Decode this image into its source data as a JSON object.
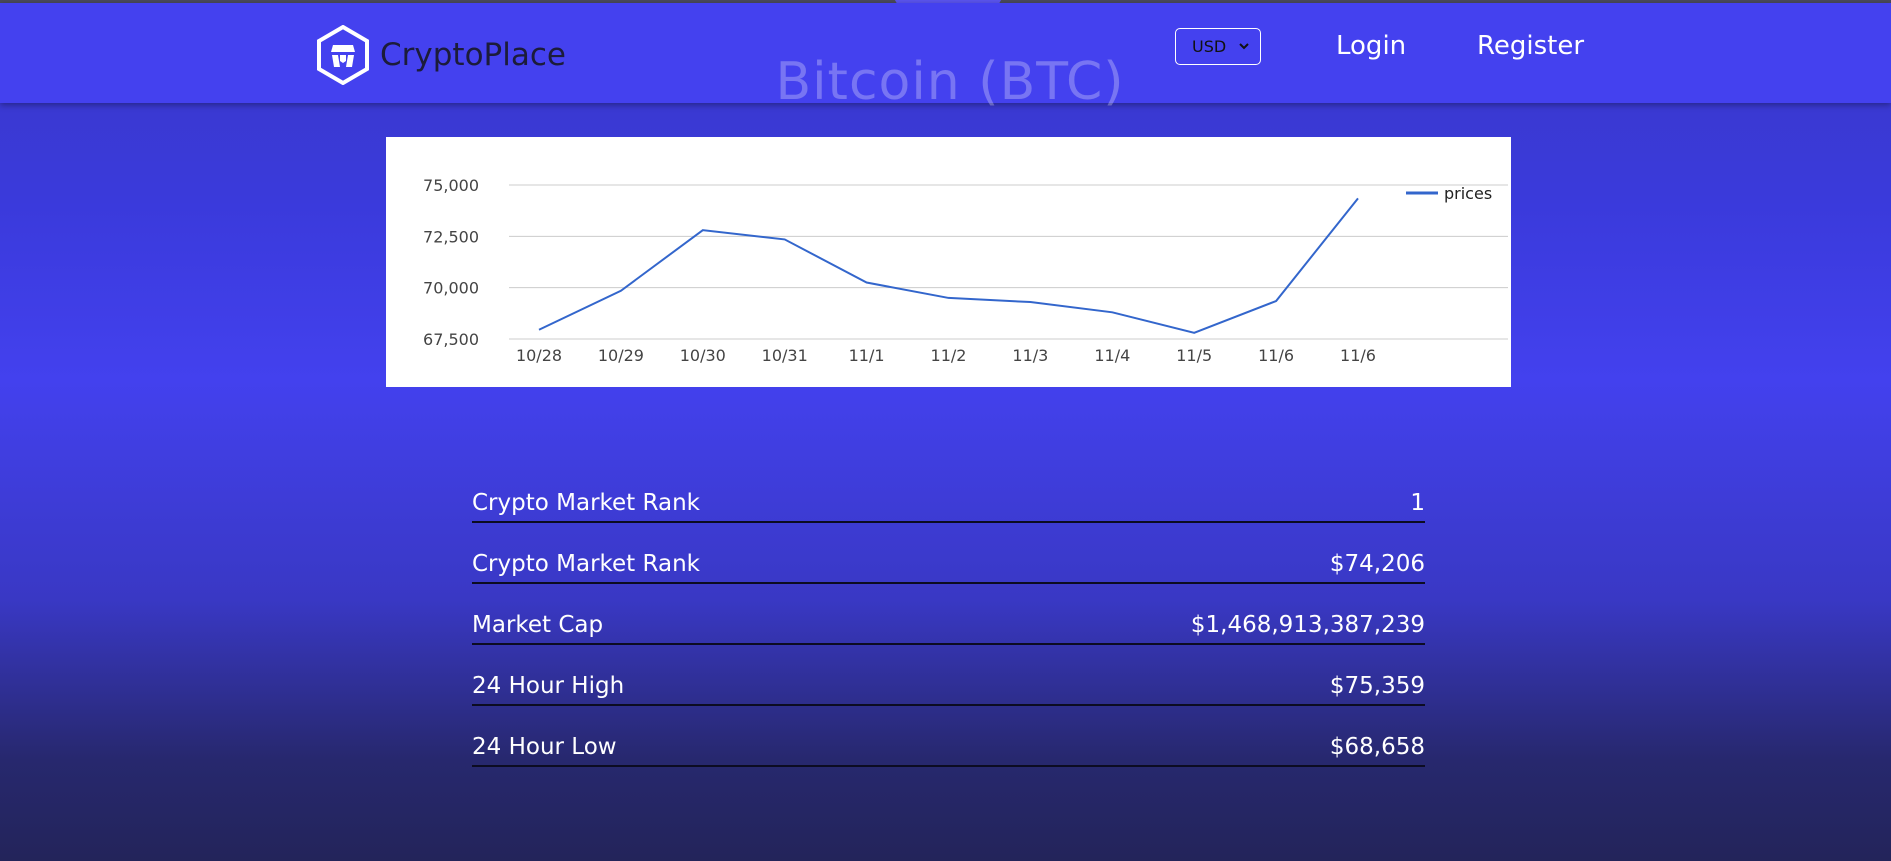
{
  "header": {
    "brand": "CryptoPlace",
    "currency": "USD",
    "nav": {
      "login": "Login",
      "register": "Register"
    }
  },
  "coin": {
    "title": "Bitcoin (BTC)"
  },
  "chart_data": {
    "type": "line",
    "categories": [
      "10/28",
      "10/29",
      "10/30",
      "10/31",
      "11/1",
      "11/2",
      "11/3",
      "11/4",
      "11/5",
      "11/6",
      "11/6"
    ],
    "series": [
      {
        "name": "prices",
        "values": [
          67950,
          69850,
          72800,
          72350,
          70250,
          69500,
          69300,
          68800,
          67800,
          69350,
          74350
        ]
      }
    ],
    "yticks": [
      67500,
      70000,
      72500,
      75000
    ],
    "ytick_labels": [
      "67,500",
      "70,000",
      "72,500",
      "75,000"
    ],
    "ylim": [
      67500,
      75000
    ],
    "grid": true,
    "legend": "right",
    "colors": {
      "line": "#3366cc",
      "grid": "#cccccc"
    }
  },
  "stats": [
    {
      "label": "Crypto Market Rank",
      "value": "1"
    },
    {
      "label": "Crypto Market Rank",
      "value": "$74,206"
    },
    {
      "label": "Market Cap",
      "value": "$1,468,913,387,239"
    },
    {
      "label": "24 Hour High",
      "value": "$75,359"
    },
    {
      "label": "24 Hour Low",
      "value": "$68,658"
    }
  ]
}
